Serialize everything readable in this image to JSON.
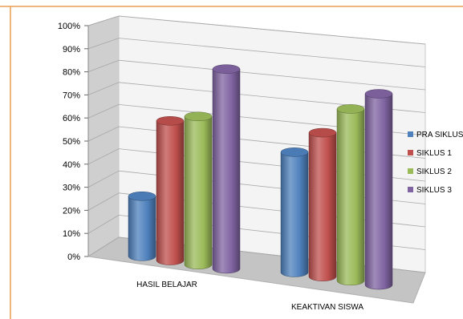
{
  "chart_data": {
    "type": "bar",
    "style": "3d-cylinder",
    "categories": [
      "HASIL BELAJAR",
      "KEAKTIVAN SISWA"
    ],
    "series": [
      {
        "name": "PRA SIKLUS",
        "values": [
          28,
          56
        ],
        "color": "#4f81bd"
      },
      {
        "name": "SIKLUS 1",
        "values": [
          65,
          67
        ],
        "color": "#c0504d"
      },
      {
        "name": "SIKLUS 2",
        "values": [
          69,
          80
        ],
        "color": "#9bbb59"
      },
      {
        "name": "SIKLUS 3",
        "values": [
          93,
          89
        ],
        "color": "#8064a2"
      }
    ],
    "y_ticks": [
      "0%",
      "10%",
      "20%",
      "30%",
      "40%",
      "50%",
      "60%",
      "70%",
      "80%",
      "90%",
      "100%"
    ],
    "ylim": [
      0,
      100
    ],
    "grid": true,
    "legend_position": "right",
    "frame_colors": {
      "top": "#e8a050",
      "left": "#e8a050"
    }
  }
}
